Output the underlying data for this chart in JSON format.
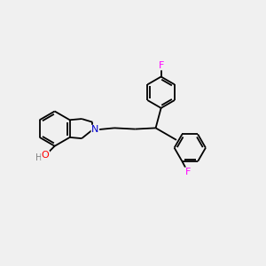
{
  "background_color": "#f0f0f0",
  "bond_color": "#000000",
  "bond_width": 1.3,
  "N_color": "#0000cd",
  "O_color": "#ff0000",
  "F_color": "#ff00ff",
  "H_color": "#808080",
  "font_size": 8,
  "fig_width": 3.0,
  "fig_height": 3.0,
  "dpi": 100,
  "xlim": [
    0,
    12
  ],
  "ylim": [
    0,
    10
  ]
}
